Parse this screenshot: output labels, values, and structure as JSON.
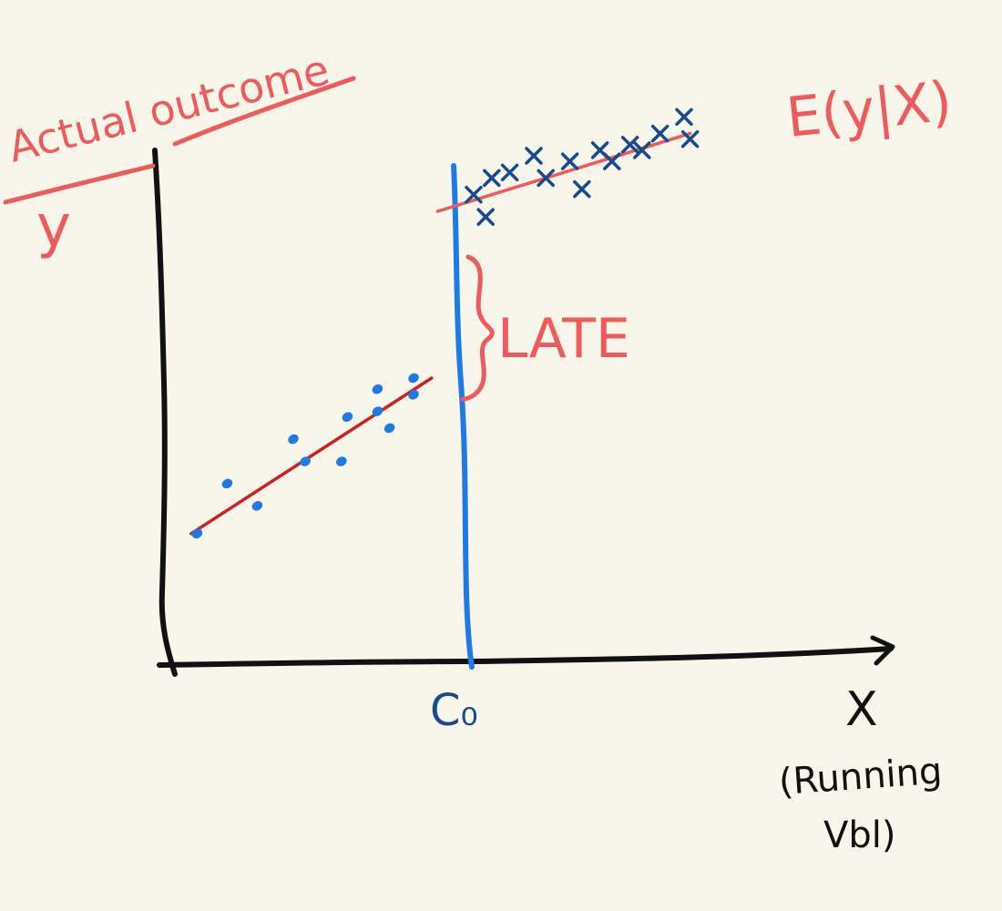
{
  "diagram": {
    "y_axis_label": "Actual outcome",
    "y_axis_symbol": "y",
    "x_axis_symbol": "X",
    "x_axis_note_line1": "(Running",
    "x_axis_note_line2": "Vbl)",
    "cutoff_label": "C₀",
    "gap_label": "LATE",
    "curve_label": "E(y|X)"
  },
  "colors": {
    "axes": "#111111",
    "cutoff_line": "#1e7be6",
    "left_points": "#1e7be6",
    "left_fit": "#cc1f1f",
    "right_points": "#174a8c",
    "right_fit": "#ef5a5a",
    "annotation": "#ef5a5a",
    "cutoff_label": "#174a8c",
    "background": "#f8f6ea"
  },
  "chart_data": {
    "type": "scatter",
    "title": "",
    "xlabel": "X",
    "ylabel": "y",
    "xlim": [
      0,
      100
    ],
    "ylim": [
      0,
      100
    ],
    "cutoff": 42,
    "series": [
      {
        "marker": "circle",
        "points": [
          [
            4,
            22
          ],
          [
            9,
            31
          ],
          [
            14,
            27
          ],
          [
            20,
            39
          ],
          [
            22,
            35
          ],
          [
            28,
            35
          ],
          [
            29,
            43
          ],
          [
            36,
            41
          ],
          [
            34,
            44
          ],
          [
            34,
            48
          ],
          [
            40,
            50
          ],
          [
            40,
            47
          ]
        ]
      },
      {
        "marker": "cross",
        "points": [
          [
            50,
            83
          ],
          [
            53,
            86
          ],
          [
            56,
            87
          ],
          [
            52,
            79
          ],
          [
            60,
            90
          ],
          [
            62,
            86
          ],
          [
            66,
            89
          ],
          [
            68,
            84
          ],
          [
            71,
            91
          ],
          [
            73,
            89
          ],
          [
            76,
            92
          ],
          [
            78,
            91
          ],
          [
            81,
            94
          ],
          [
            85,
            97
          ],
          [
            86,
            93
          ]
        ]
      }
    ],
    "fit_lines": [
      {
        "from": [
          3,
          22
        ],
        "to": [
          43,
          50
        ]
      },
      {
        "from": [
          44,
          80
        ],
        "to": [
          86,
          94
        ]
      }
    ]
  }
}
